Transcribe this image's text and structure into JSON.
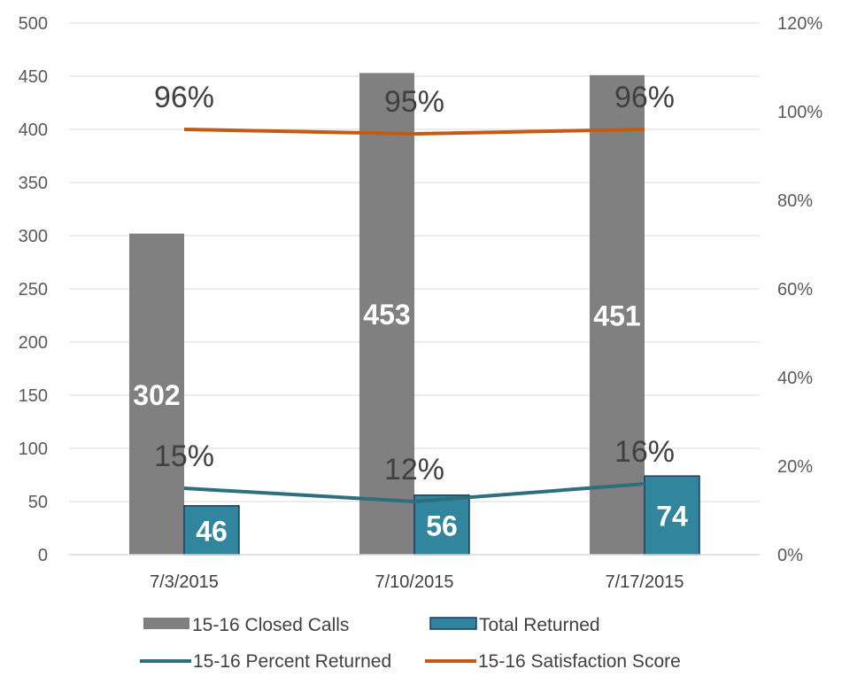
{
  "chart_data": {
    "type": "bar",
    "categories": [
      "7/3/2015",
      "7/10/2015",
      "7/17/2015"
    ],
    "bar_series": [
      {
        "name": "15-16 Closed Calls",
        "values": [
          302,
          453,
          451
        ],
        "color": "#808080",
        "data_labels": [
          "302",
          "453",
          "451"
        ]
      },
      {
        "name": "Total Returned",
        "values": [
          46,
          56,
          74
        ],
        "color": "#31859C",
        "border": "#1F3864",
        "data_labels": [
          "46",
          "56",
          "74"
        ]
      }
    ],
    "line_series": [
      {
        "name": "15-16 Percent Returned",
        "values": [
          15,
          12,
          16
        ],
        "color": "#2E6F7E",
        "axis": "right",
        "data_labels": [
          "15%",
          "12%",
          "16%"
        ]
      },
      {
        "name": "15-16 Satisfaction Score",
        "values": [
          96,
          95,
          96
        ],
        "color": "#C55A11",
        "axis": "right",
        "data_labels": [
          "96%",
          "95%",
          "96%"
        ]
      }
    ],
    "ylim": [
      0,
      500
    ],
    "y_ticks": [
      "0",
      "50",
      "100",
      "150",
      "200",
      "250",
      "300",
      "350",
      "400",
      "450",
      "500"
    ],
    "y2lim": [
      0,
      120
    ],
    "y2_ticks": [
      "0%",
      "20%",
      "40%",
      "60%",
      "80%",
      "100%",
      "120%"
    ],
    "grid": true,
    "legend_position": "bottom",
    "title": "",
    "xlabel": "",
    "ylabel": ""
  }
}
